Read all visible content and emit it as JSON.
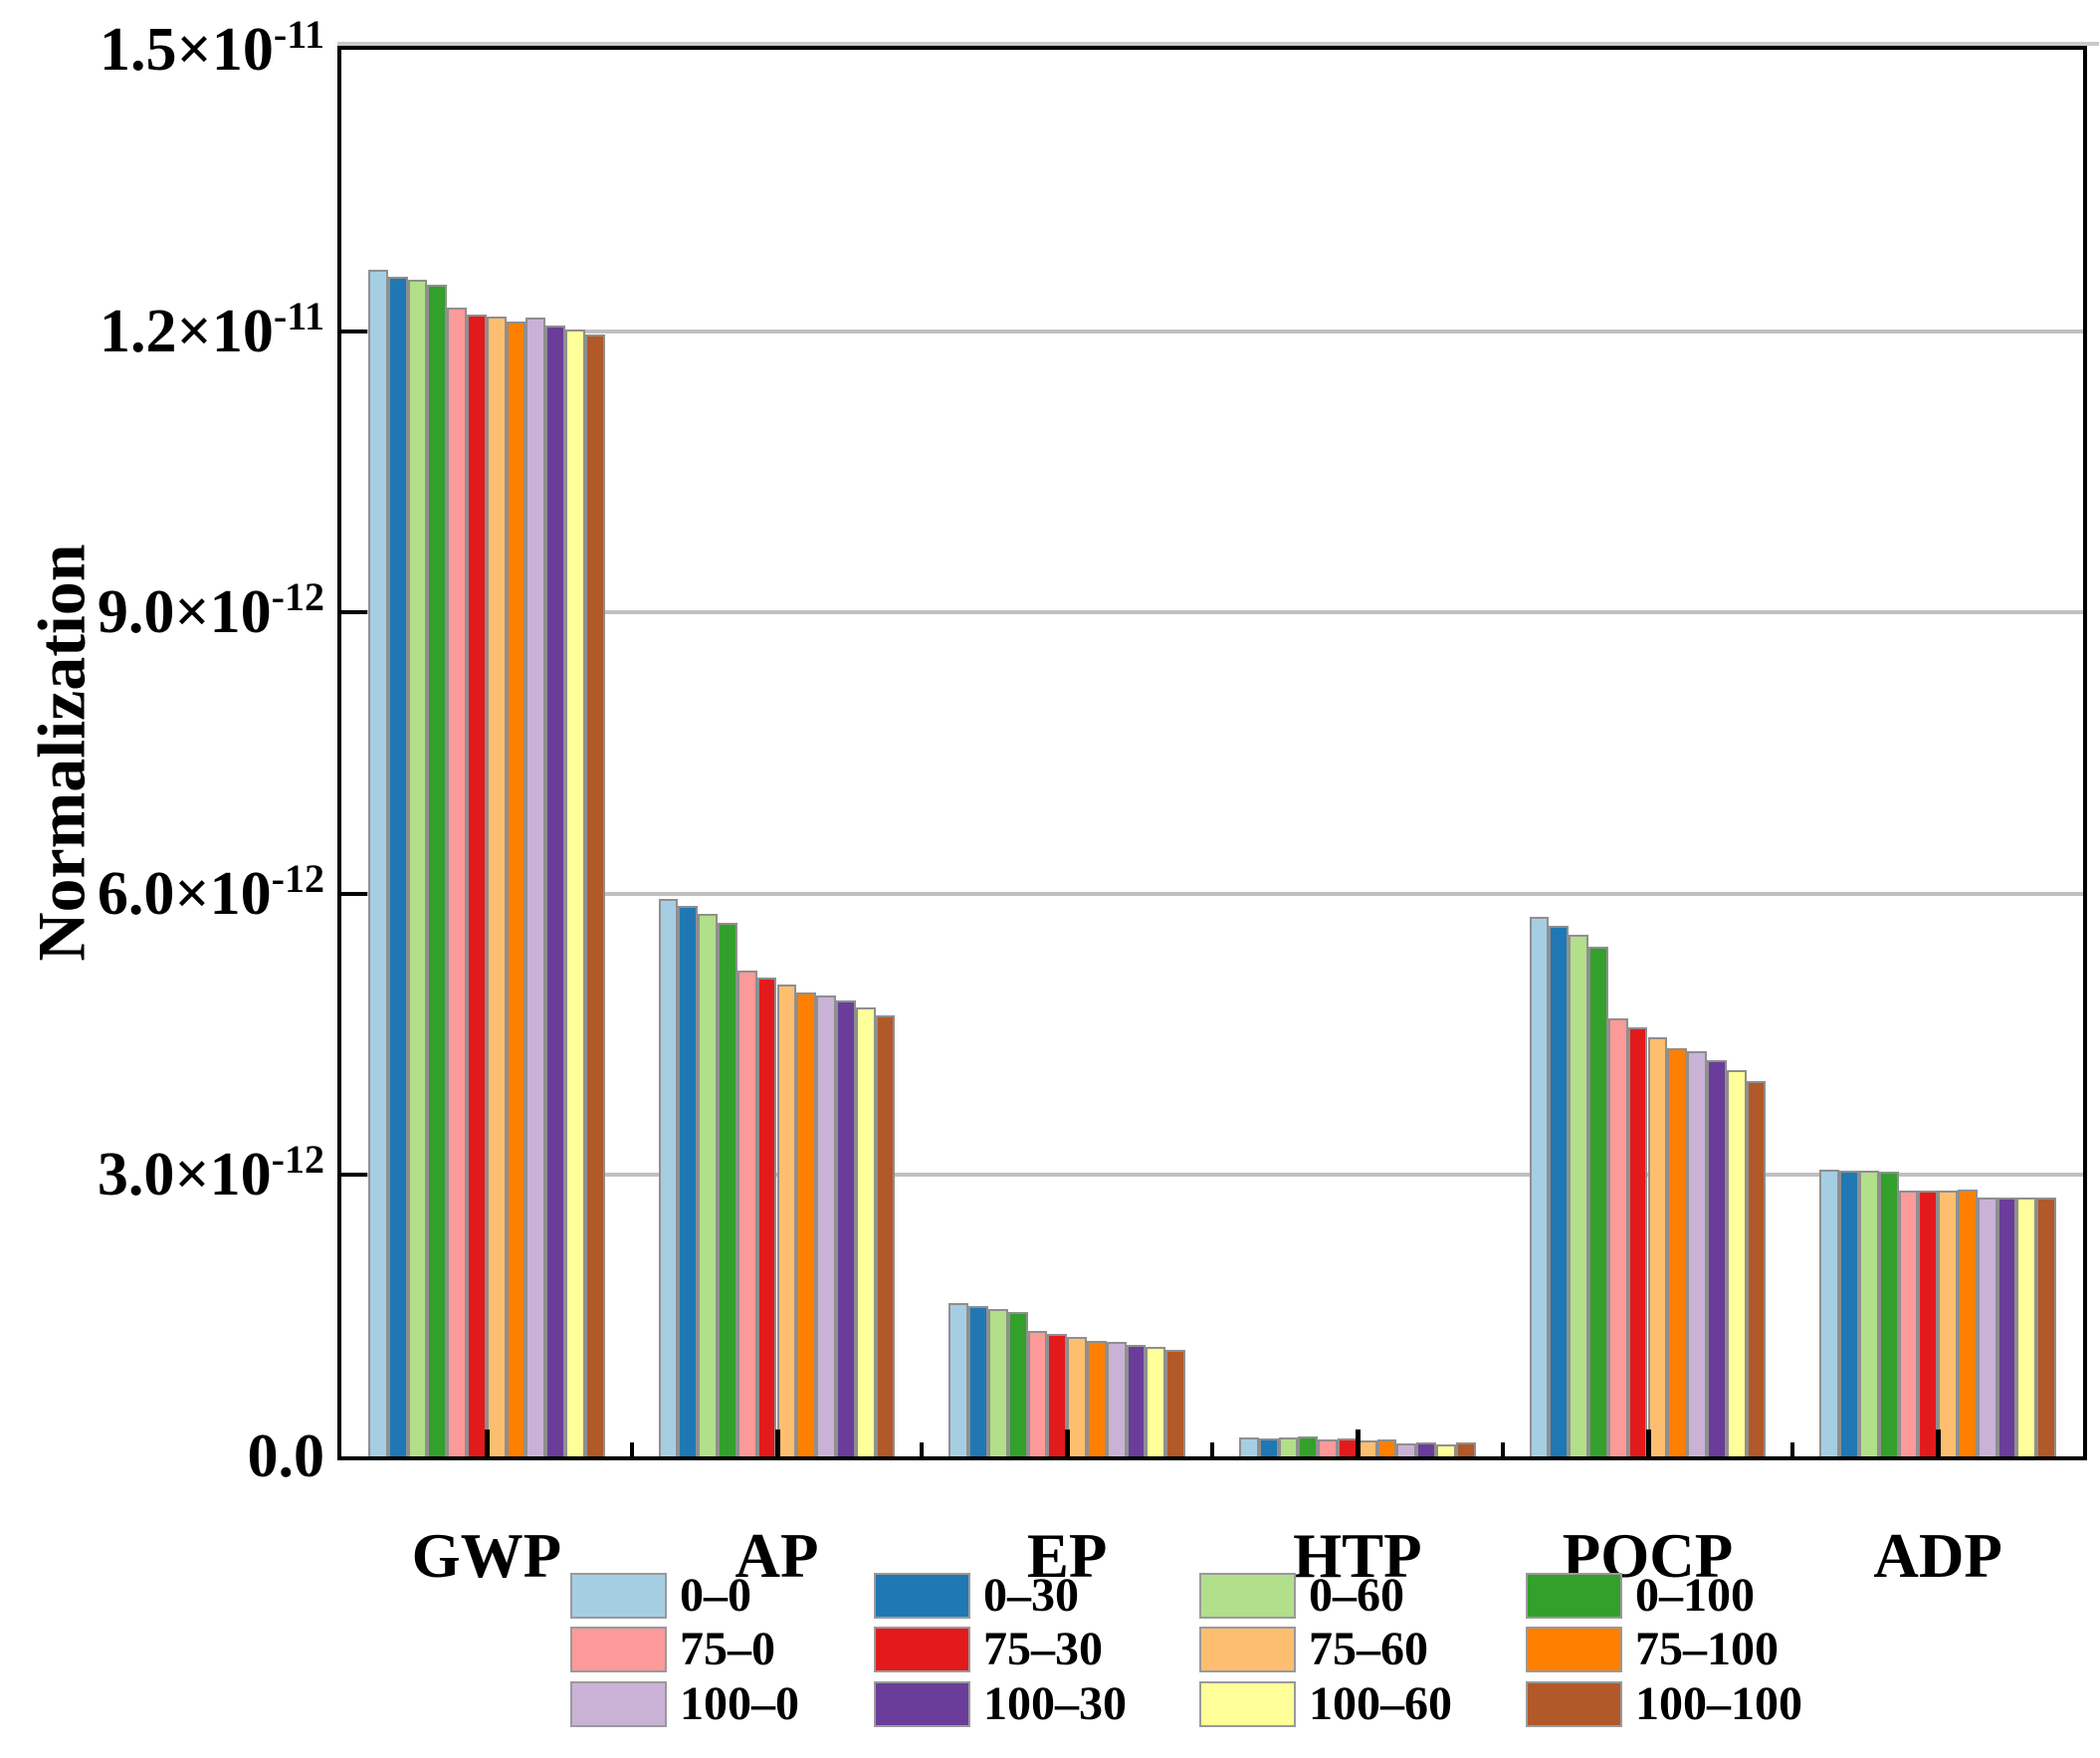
{
  "figure": {
    "background": "#ffffff",
    "frame_color": "#000000",
    "grid_color": "#c0c0c0",
    "bar_border_color": "#8f8f8f"
  },
  "chart_data": {
    "type": "bar",
    "title": "",
    "xlabel": "",
    "ylabel": "Normalization",
    "grid": "horizontal",
    "legend_position": "bottom",
    "legend_columns": 4,
    "categories": [
      "GWP",
      "AP",
      "EP",
      "HTP",
      "POCP",
      "ADP"
    ],
    "value_unit": "1e-12",
    "ylim_e12": [
      0,
      15
    ],
    "gridline_values_e12": [
      3,
      6,
      9,
      12
    ],
    "yticks": [
      {
        "v": 0,
        "text": "0.0",
        "exp": null
      },
      {
        "v": 3,
        "text": "3.0×10",
        "exp": "-12"
      },
      {
        "v": 6,
        "text": "6.0×10",
        "exp": "-12"
      },
      {
        "v": 9,
        "text": "9.0×10",
        "exp": "-12"
      },
      {
        "v": 12,
        "text": "1.2×10",
        "exp": "-11"
      },
      {
        "v": 15,
        "text": "1.5×10",
        "exp": "-11"
      }
    ],
    "series": [
      {
        "name": "0–0",
        "color": "#A6CEE3",
        "values_e12": [
          12.65,
          5.94,
          1.63,
          0.2,
          5.75,
          3.06
        ]
      },
      {
        "name": "0–30",
        "color": "#1F78B4",
        "values_e12": [
          12.58,
          5.87,
          1.6,
          0.19,
          5.66,
          3.05
        ]
      },
      {
        "name": "0–60",
        "color": "#B2DF8A",
        "values_e12": [
          12.55,
          5.79,
          1.57,
          0.2,
          5.56,
          3.05
        ]
      },
      {
        "name": "0–100",
        "color": "#33A02C",
        "values_e12": [
          12.49,
          5.69,
          1.54,
          0.21,
          5.43,
          3.04
        ]
      },
      {
        "name": "75–0",
        "color": "#FB9A99",
        "values_e12": [
          12.25,
          5.18,
          1.34,
          0.18,
          4.67,
          2.83
        ]
      },
      {
        "name": "75–30",
        "color": "#E31A1C",
        "values_e12": [
          12.18,
          5.11,
          1.31,
          0.19,
          4.58,
          2.83
        ]
      },
      {
        "name": "75–60",
        "color": "#FDBF6F",
        "values_e12": [
          12.16,
          5.03,
          1.27,
          0.17,
          4.47,
          2.83
        ]
      },
      {
        "name": "75–100",
        "color": "#FF7F00",
        "values_e12": [
          12.1,
          4.95,
          1.23,
          0.18,
          4.35,
          2.85
        ]
      },
      {
        "name": "100–0",
        "color": "#CAB2D6",
        "values_e12": [
          12.14,
          4.91,
          1.22,
          0.14,
          4.32,
          2.76
        ]
      },
      {
        "name": "100–30",
        "color": "#6A3D9A",
        "values_e12": [
          12.06,
          4.86,
          1.19,
          0.15,
          4.23,
          2.76
        ]
      },
      {
        "name": "100–60",
        "color": "#FFFF99",
        "values_e12": [
          12.02,
          4.79,
          1.17,
          0.13,
          4.12,
          2.76
        ]
      },
      {
        "name": "100–100",
        "color": "#B15928",
        "values_e12": [
          11.96,
          4.7,
          1.14,
          0.15,
          4.0,
          2.76
        ]
      }
    ]
  }
}
